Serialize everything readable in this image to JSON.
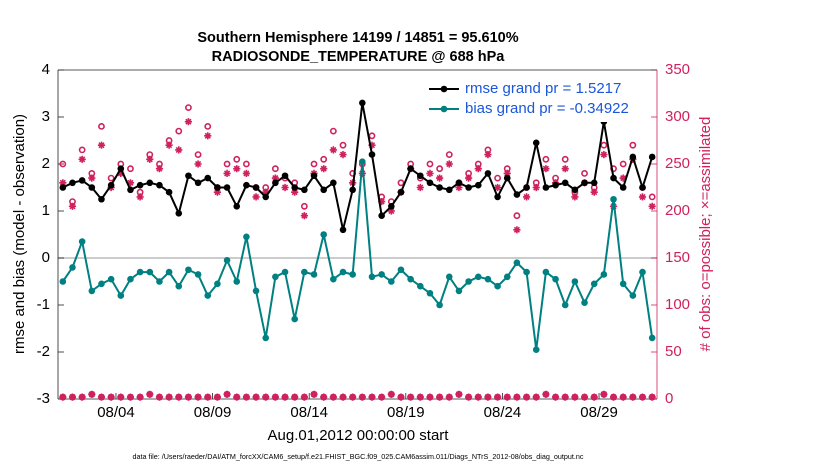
{
  "chart_data": {
    "type": "line",
    "title": "Southern Hemisphere 14199 / 14851 = 95.610%",
    "subtitle": "RADIOSONDE_TEMPERATURE @ 688 hPa",
    "xlabel": "Aug.01,2012 00:00:00 start",
    "ylabel": "rmse and bias (model - observation)",
    "y2label": "# of obs: o=possible; ×=assimilated",
    "footnote": "data file: /Users/raeder/DAI/ATM_forcXX/CAM6_setup/f.e21.FHIST_BGC.f09_025.CAM6assim.011/Diags_NTrS_2012-08/obs_diag_output.nc",
    "legend": "upper right",
    "hline": 0,
    "xlim": [
      0,
      31
    ],
    "xticks": [
      {
        "value": 3,
        "label": "08/04"
      },
      {
        "value": 8,
        "label": "08/09"
      },
      {
        "value": 13,
        "label": "08/14"
      },
      {
        "value": 18,
        "label": "08/19"
      },
      {
        "value": 23,
        "label": "08/24"
      },
      {
        "value": 28,
        "label": "08/29"
      }
    ],
    "ylim": [
      -3,
      4
    ],
    "yticks": [
      -3,
      -2,
      -1,
      0,
      1,
      2,
      3,
      4
    ],
    "y2lim": [
      0,
      350
    ],
    "y2ticks": [
      0,
      50,
      100,
      150,
      200,
      250,
      300,
      350
    ],
    "y2color": "#d0215f",
    "x": [
      0.25,
      0.75,
      1.25,
      1.75,
      2.25,
      2.75,
      3.25,
      3.75,
      4.25,
      4.75,
      5.25,
      5.75,
      6.25,
      6.75,
      7.25,
      7.75,
      8.25,
      8.75,
      9.25,
      9.75,
      10.25,
      10.75,
      11.25,
      11.75,
      12.25,
      12.75,
      13.25,
      13.75,
      14.25,
      14.75,
      15.25,
      15.75,
      16.25,
      16.75,
      17.25,
      17.75,
      18.25,
      18.75,
      19.25,
      19.75,
      20.25,
      20.75,
      21.25,
      21.75,
      22.25,
      22.75,
      23.25,
      23.75,
      24.25,
      24.75,
      25.25,
      25.75,
      26.25,
      26.75,
      27.25,
      27.75,
      28.25,
      28.75,
      29.25,
      29.75,
      30.25,
      30.75
    ],
    "series": [
      {
        "name": "rmse grand pr = 1.5217",
        "color": "#000000",
        "marker": "filled-circle",
        "line": true,
        "values": [
          1.5,
          1.6,
          1.65,
          1.5,
          1.25,
          1.55,
          1.9,
          1.45,
          1.55,
          1.6,
          1.55,
          1.4,
          0.95,
          1.75,
          1.6,
          1.7,
          1.5,
          1.5,
          1.1,
          1.55,
          1.5,
          1.3,
          1.6,
          1.75,
          1.5,
          1.45,
          1.75,
          1.45,
          1.6,
          0.6,
          1.45,
          3.3,
          2.2,
          0.9,
          1.1,
          1.4,
          1.9,
          1.75,
          1.6,
          1.5,
          1.45,
          1.6,
          1.5,
          1.55,
          1.8,
          1.3,
          1.7,
          1.35,
          1.5,
          2.45,
          1.5,
          1.55,
          1.6,
          1.45,
          1.6,
          1.6,
          2.9,
          1.7,
          1.5,
          2.15,
          1.5,
          2.15
        ]
      },
      {
        "name": "bias grand pr = -0.34922",
        "color": "#008080",
        "marker": "filled-circle",
        "line": true,
        "values": [
          -0.5,
          -0.2,
          0.35,
          -0.7,
          -0.55,
          -0.45,
          -0.8,
          -0.45,
          -0.3,
          -0.3,
          -0.5,
          -0.3,
          -0.6,
          -0.25,
          -0.35,
          -0.8,
          -0.55,
          -0.05,
          -0.5,
          0.45,
          -0.7,
          -1.7,
          -0.4,
          -0.3,
          -1.3,
          -0.3,
          -0.35,
          0.5,
          -0.45,
          -0.3,
          -0.35,
          2.05,
          -0.4,
          -0.35,
          -0.5,
          -0.25,
          -0.45,
          -0.6,
          -0.75,
          -1.0,
          -0.4,
          -0.7,
          -0.5,
          -0.4,
          -0.45,
          -0.6,
          -0.4,
          -0.1,
          -0.3,
          -1.95,
          -0.3,
          -0.45,
          -1.0,
          -0.5,
          -0.95,
          -0.55,
          -0.35,
          1.25,
          -0.55,
          -0.8,
          -0.3,
          -1.7
        ]
      },
      {
        "color": "#d0215f",
        "marker": "open-circle",
        "line": false,
        "axis": "y2",
        "values": [
          250,
          210,
          265,
          240,
          290,
          235,
          250,
          245,
          220,
          260,
          250,
          275,
          285,
          310,
          260,
          290,
          225,
          250,
          255,
          250,
          225,
          225,
          245,
          235,
          230,
          205,
          250,
          255,
          285,
          270,
          240,
          250,
          280,
          215,
          210,
          230,
          250,
          235,
          250,
          245,
          260,
          230,
          240,
          250,
          265,
          235,
          245,
          195,
          225,
          230,
          255,
          235,
          255,
          220,
          240,
          225,
          270,
          245,
          250,
          270,
          225,
          215
        ]
      },
      {
        "color": "#d0215f",
        "marker": "asterisk",
        "line": false,
        "axis": "y2",
        "values": [
          230,
          205,
          255,
          235,
          270,
          225,
          240,
          230,
          215,
          255,
          245,
          270,
          265,
          295,
          250,
          280,
          220,
          240,
          245,
          240,
          215,
          220,
          235,
          225,
          220,
          195,
          240,
          245,
          265,
          260,
          230,
          240,
          270,
          210,
          200,
          220,
          245,
          225,
          240,
          235,
          250,
          225,
          235,
          245,
          260,
          225,
          240,
          180,
          215,
          225,
          245,
          230,
          245,
          215,
          230,
          220,
          260,
          205,
          235,
          255,
          215,
          205
        ]
      },
      {
        "color": "#d0215f",
        "marker": "open-circle",
        "line": false,
        "axis": "y2",
        "values": [
          2,
          2,
          2,
          5,
          2,
          2,
          2,
          2,
          2,
          5,
          2,
          2,
          2,
          2,
          2,
          2,
          2,
          5,
          2,
          2,
          2,
          2,
          2,
          2,
          2,
          2,
          5,
          2,
          2,
          2,
          2,
          2,
          2,
          2,
          5,
          2,
          2,
          2,
          2,
          2,
          2,
          5,
          2,
          2,
          2,
          2,
          2,
          2,
          2,
          2,
          5,
          2,
          2,
          2,
          2,
          2,
          5,
          2,
          2,
          2,
          2,
          2
        ]
      },
      {
        "color": "#d0215f",
        "marker": "asterisk",
        "line": false,
        "axis": "y2",
        "values": [
          2,
          2,
          2,
          5,
          2,
          2,
          2,
          2,
          2,
          5,
          2,
          2,
          2,
          2,
          2,
          2,
          2,
          5,
          2,
          2,
          2,
          2,
          2,
          2,
          2,
          2,
          5,
          2,
          2,
          2,
          2,
          2,
          2,
          2,
          5,
          2,
          2,
          2,
          2,
          2,
          2,
          5,
          2,
          2,
          2,
          2,
          2,
          2,
          2,
          2,
          5,
          2,
          2,
          2,
          2,
          2,
          5,
          2,
          2,
          2,
          2,
          2
        ]
      }
    ]
  }
}
